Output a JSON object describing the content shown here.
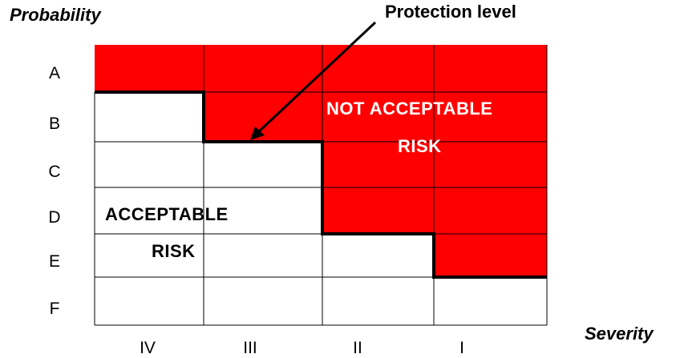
{
  "axes": {
    "y_title": "Probability",
    "x_title": "Severity"
  },
  "rows": [
    "A",
    "B",
    "C",
    "D",
    "E",
    "F"
  ],
  "columns": [
    "IV",
    "III",
    "II",
    "I"
  ],
  "annotation": "Protection level",
  "regions": {
    "not_acceptable": {
      "line1": "NOT ACCEPTABLE",
      "line2": "RISK"
    },
    "acceptable": {
      "line1": "ACCEPTABLE",
      "line2": "RISK"
    }
  },
  "colors": {
    "not_acceptable_fill": "#ff0000",
    "acceptable_fill": "#ffffff",
    "grid": "#000000"
  }
}
